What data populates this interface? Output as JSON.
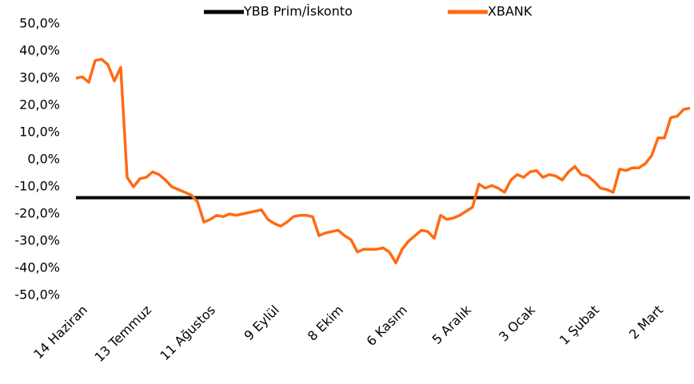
{
  "chart_data": {
    "type": "line",
    "categories": [
      "14 Haziran",
      null,
      null,
      null,
      null,
      null,
      null,
      null,
      null,
      null,
      "13 Temmuz",
      null,
      null,
      null,
      null,
      null,
      null,
      null,
      null,
      null,
      "11 Ağustos",
      null,
      null,
      null,
      null,
      null,
      null,
      null,
      null,
      null,
      "9 Eylül",
      null,
      null,
      null,
      null,
      null,
      null,
      null,
      null,
      null,
      "8 Ekim",
      null,
      null,
      null,
      null,
      null,
      null,
      null,
      null,
      null,
      "6 Kasım",
      null,
      null,
      null,
      null,
      null,
      null,
      null,
      null,
      null,
      "5 Aralık",
      null,
      null,
      null,
      null,
      null,
      null,
      null,
      null,
      null,
      "3 Ocak",
      null,
      null,
      null,
      null,
      null,
      null,
      null,
      null,
      null,
      "1 Şubat",
      null,
      null,
      null,
      null,
      null,
      null,
      null,
      null,
      null,
      "2 Mart",
      null,
      null,
      null,
      null,
      null,
      null
    ],
    "series": [
      {
        "name": "YBB Prim/İskonto",
        "color": "#000000",
        "values": [
          -14,
          -14,
          -14,
          -14,
          -14,
          -14,
          -14,
          -14,
          -14,
          -14,
          -14,
          -14,
          -14,
          -14,
          -14,
          -14,
          -14,
          -14,
          -14,
          -14,
          -14,
          -14,
          -14,
          -14,
          -14,
          -14,
          -14,
          -14,
          -14,
          -14,
          -14,
          -14,
          -14,
          -14,
          -14,
          -14,
          -14,
          -14,
          -14,
          -14,
          -14,
          -14,
          -14,
          -14,
          -14,
          -14,
          -14,
          -14,
          -14,
          -14,
          -14,
          -14,
          -14,
          -14,
          -14,
          -14,
          -14,
          -14,
          -14,
          -14,
          -14,
          -14,
          -14,
          -14,
          -14,
          -14,
          -14,
          -14,
          -14,
          -14,
          -14,
          -14,
          -14,
          -14,
          -14,
          -14,
          -14,
          -14,
          -14,
          -14,
          -14,
          -14,
          -14,
          -14,
          -14,
          -14,
          -14,
          -14,
          -14,
          -14,
          -14,
          -14,
          -14,
          -14,
          -14,
          -14,
          -14
        ]
      },
      {
        "name": "XBANK",
        "color": "#ff6a13",
        "values": [
          30,
          30.5,
          28.5,
          36.5,
          37,
          35,
          29,
          34,
          -6.5,
          -10,
          -7,
          -6.5,
          -4.5,
          -5.5,
          -7.5,
          -10,
          -11,
          -12,
          -13,
          -15.5,
          -23,
          -22,
          -20.5,
          -21,
          -20,
          -20.5,
          -20,
          -19.5,
          -19,
          -18.5,
          -22,
          -23.5,
          -24.5,
          -23,
          -21,
          -20.5,
          -20.5,
          -21,
          -28,
          -27,
          -26.5,
          -26,
          -28,
          -29.5,
          -34,
          -33,
          -33,
          -33,
          -32.5,
          -34,
          -38,
          -33,
          -30,
          -28,
          -26,
          -26.5,
          -29,
          -20.5,
          -22,
          -21.5,
          -20.5,
          -19,
          -17.5,
          -9,
          -10.5,
          -9.5,
          -10.5,
          -12,
          -7.5,
          -5.5,
          -6.5,
          -4.5,
          -4,
          -6.5,
          -5.5,
          -6,
          -7.5,
          -4.5,
          -2.5,
          -5.5,
          -6,
          -8,
          -10.5,
          -11,
          -12,
          -3.5,
          -4,
          -3,
          -3,
          -1.5,
          1.5,
          8,
          8,
          15.5,
          16,
          18.5,
          19
        ]
      }
    ],
    "ylim": [
      -50,
      50
    ],
    "yticks": [
      {
        "value": 50,
        "label": "50,0%"
      },
      {
        "value": 40,
        "label": "40,0%"
      },
      {
        "value": 30,
        "label": "30,0%"
      },
      {
        "value": 20,
        "label": "20,0%"
      },
      {
        "value": 10,
        "label": "10,0%"
      },
      {
        "value": 0,
        "label": "0,0%"
      },
      {
        "value": -10,
        "label": "-10,0%"
      },
      {
        "value": -20,
        "label": "-20,0%"
      },
      {
        "value": -30,
        "label": "-30,0%"
      },
      {
        "value": -40,
        "label": "-40,0%"
      },
      {
        "value": -50,
        "label": "-50,0%"
      }
    ],
    "legend": "top"
  }
}
